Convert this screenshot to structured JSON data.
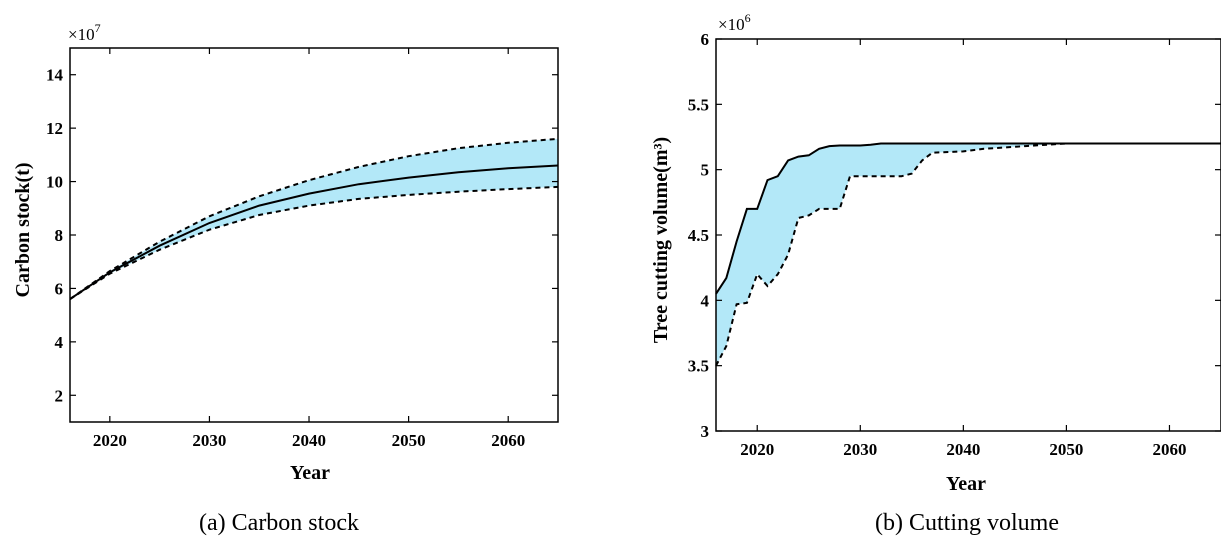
{
  "chart_data": [
    {
      "type": "area",
      "caption": "(a)  Carbon stock",
      "xlabel": "Year",
      "ylabel": "Carbon stock(t)",
      "y_multiplier": "×10",
      "y_multiplier_exp": "7",
      "xlim": [
        2016,
        2065
      ],
      "ylim": [
        1,
        15
      ],
      "xticks": [
        2020,
        2030,
        2040,
        2050,
        2060
      ],
      "yticks": [
        2,
        4,
        6,
        8,
        10,
        12,
        14
      ],
      "fill_color": "#b3e8f8",
      "grid": false,
      "series": [
        {
          "line": "solid",
          "x": [
            2016,
            2020,
            2025,
            2030,
            2035,
            2040,
            2045,
            2050,
            2055,
            2060,
            2065
          ],
          "y": [
            5.6,
            6.6,
            7.6,
            8.45,
            9.1,
            9.55,
            9.9,
            10.15,
            10.35,
            10.5,
            10.6
          ]
        },
        {
          "line": "dashed",
          "x": [
            2016,
            2020,
            2025,
            2030,
            2035,
            2040,
            2045,
            2050,
            2055,
            2060,
            2065
          ],
          "y": [
            5.6,
            6.65,
            7.75,
            8.7,
            9.45,
            10.05,
            10.55,
            10.95,
            11.25,
            11.45,
            11.6
          ]
        },
        {
          "line": "dashed",
          "x": [
            2016,
            2020,
            2025,
            2030,
            2035,
            2040,
            2045,
            2050,
            2055,
            2060,
            2065
          ],
          "y": [
            5.6,
            6.55,
            7.45,
            8.2,
            8.75,
            9.1,
            9.35,
            9.5,
            9.62,
            9.72,
            9.8
          ]
        }
      ]
    },
    {
      "type": "area",
      "caption": "(b)  Cutting volume",
      "xlabel": "Year",
      "ylabel": "Tree cutting volume(m³)",
      "y_multiplier": "×10",
      "y_multiplier_exp": "6",
      "xlim": [
        2016,
        2065
      ],
      "ylim": [
        3,
        6
      ],
      "xticks": [
        2020,
        2030,
        2040,
        2050,
        2060
      ],
      "yticks": [
        3,
        3.5,
        4,
        4.5,
        5,
        5.5,
        6
      ],
      "ytick_labels": [
        "3",
        "3.5",
        "4",
        "4.5",
        "5",
        "5.5",
        "6"
      ],
      "fill_color": "#b3e8f8",
      "grid": false,
      "series": [
        {
          "line": "solid",
          "x": [
            2016,
            2017,
            2018,
            2019,
            2020,
            2021,
            2022,
            2023,
            2024,
            2025,
            2026,
            2027,
            2028,
            2030,
            2031,
            2032,
            2040,
            2050,
            2065
          ],
          "y": [
            4.05,
            4.17,
            4.45,
            4.7,
            4.7,
            4.92,
            4.95,
            5.07,
            5.1,
            5.11,
            5.16,
            5.18,
            5.185,
            5.185,
            5.19,
            5.2,
            5.2,
            5.2,
            5.2
          ]
        },
        {
          "line": "dashed",
          "x": [
            2016,
            2017,
            2018,
            2019,
            2020,
            2021,
            2022,
            2023,
            2024,
            2025,
            2026,
            2027,
            2028,
            2029,
            2034,
            2035,
            2036,
            2037,
            2040,
            2042,
            2046,
            2050,
            2065
          ],
          "y": [
            3.5,
            3.65,
            3.97,
            3.98,
            4.2,
            4.11,
            4.2,
            4.35,
            4.63,
            4.65,
            4.7,
            4.7,
            4.7,
            4.95,
            4.95,
            4.97,
            5.07,
            5.13,
            5.14,
            5.16,
            5.18,
            5.2,
            5.2
          ]
        }
      ]
    }
  ]
}
